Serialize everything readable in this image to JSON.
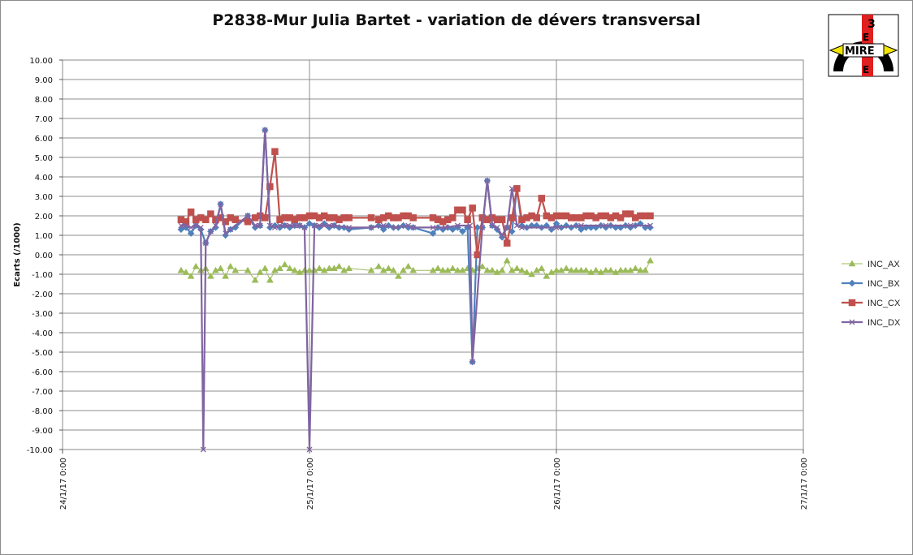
{
  "chart_data": {
    "type": "line",
    "title": "P2838-Mur Julia Bartet - variation de dévers transversal",
    "ylabel": "Ecarts (/1000)",
    "xlabel": "",
    "ylim": [
      -10,
      10
    ],
    "yticks": [
      "10.00",
      "9.00",
      "8.00",
      "7.00",
      "6.00",
      "5.00",
      "4.00",
      "3.00",
      "2.00",
      "1.00",
      "0.00",
      "-1.00",
      "-2.00",
      "-3.00",
      "-4.00",
      "-5.00",
      "-6.00",
      "-7.00",
      "-8.00",
      "-9.00",
      "-10.00"
    ],
    "xlim_days": [
      0,
      3
    ],
    "xticks": [
      "24/1/17 0:00",
      "25/1/17 0:00",
      "26/1/17 0:00",
      "27/1/17 0:00"
    ],
    "grid": "major",
    "legend_position": "right",
    "series": [
      {
        "name": "INC_AX",
        "color": "#9bbb59",
        "marker": "triangle",
        "x": [
          0.48,
          0.5,
          0.52,
          0.54,
          0.56,
          0.58,
          0.6,
          0.62,
          0.64,
          0.66,
          0.68,
          0.7,
          0.75,
          0.78,
          0.8,
          0.82,
          0.84,
          0.86,
          0.88,
          0.9,
          0.92,
          0.94,
          0.96,
          0.98,
          1.0,
          1.02,
          1.04,
          1.06,
          1.08,
          1.1,
          1.12,
          1.14,
          1.16,
          1.25,
          1.28,
          1.3,
          1.32,
          1.34,
          1.36,
          1.38,
          1.4,
          1.42,
          1.5,
          1.52,
          1.54,
          1.56,
          1.58,
          1.6,
          1.62,
          1.64,
          1.66,
          1.68,
          1.7,
          1.72,
          1.74,
          1.76,
          1.78,
          1.8,
          1.82,
          1.84,
          1.86,
          1.88,
          1.9,
          1.92,
          1.94,
          1.96,
          1.98,
          2.0,
          2.02,
          2.04,
          2.06,
          2.08,
          2.1,
          2.12,
          2.14,
          2.16,
          2.18,
          2.2,
          2.22,
          2.24,
          2.26,
          2.28,
          2.3,
          2.32,
          2.34,
          2.36,
          2.38
        ],
        "y": [
          -0.8,
          -0.9,
          -1.1,
          -0.6,
          -0.8,
          -0.7,
          -1.1,
          -0.8,
          -0.7,
          -1.1,
          -0.6,
          -0.8,
          -0.8,
          -1.3,
          -0.9,
          -0.7,
          -1.3,
          -0.8,
          -0.7,
          -0.5,
          -0.7,
          -0.8,
          -0.9,
          -0.8,
          -0.8,
          -0.8,
          -0.7,
          -0.8,
          -0.7,
          -0.7,
          -0.6,
          -0.8,
          -0.7,
          -0.8,
          -0.6,
          -0.8,
          -0.7,
          -0.8,
          -1.1,
          -0.8,
          -0.6,
          -0.8,
          -0.8,
          -0.7,
          -0.8,
          -0.8,
          -0.7,
          -0.8,
          -0.8,
          -0.7,
          -0.8,
          -0.7,
          -0.6,
          -0.8,
          -0.8,
          -0.9,
          -0.8,
          -0.3,
          -0.8,
          -0.7,
          -0.8,
          -0.9,
          -1.0,
          -0.8,
          -0.7,
          -1.1,
          -0.9,
          -0.8,
          -0.8,
          -0.7,
          -0.8,
          -0.8,
          -0.8,
          -0.8,
          -0.9,
          -0.8,
          -0.9,
          -0.8,
          -0.8,
          -0.9,
          -0.8,
          -0.8,
          -0.8,
          -0.7,
          -0.8,
          -0.8,
          -0.3
        ]
      },
      {
        "name": "INC_BX",
        "color": "#4f81bd",
        "marker": "diamond",
        "x": [
          0.48,
          0.5,
          0.52,
          0.54,
          0.56,
          0.58,
          0.6,
          0.62,
          0.64,
          0.66,
          0.68,
          0.7,
          0.75,
          0.78,
          0.8,
          0.82,
          0.84,
          0.86,
          0.88,
          0.9,
          0.92,
          0.94,
          0.96,
          0.98,
          1.0,
          1.02,
          1.04,
          1.06,
          1.08,
          1.1,
          1.12,
          1.14,
          1.16,
          1.25,
          1.28,
          1.3,
          1.32,
          1.34,
          1.36,
          1.38,
          1.4,
          1.42,
          1.5,
          1.52,
          1.54,
          1.56,
          1.58,
          1.6,
          1.62,
          1.64,
          1.66,
          1.68,
          1.7,
          1.72,
          1.74,
          1.76,
          1.78,
          1.8,
          1.82,
          1.84,
          1.86,
          1.88,
          1.9,
          1.92,
          1.94,
          1.96,
          1.98,
          2.0,
          2.02,
          2.04,
          2.06,
          2.08,
          2.1,
          2.12,
          2.14,
          2.16,
          2.18,
          2.2,
          2.22,
          2.24,
          2.26,
          2.28,
          2.3,
          2.32,
          2.34,
          2.36,
          2.38
        ],
        "y": [
          1.3,
          1.4,
          1.1,
          1.5,
          1.3,
          0.6,
          1.2,
          1.4,
          2.6,
          1.0,
          1.3,
          1.4,
          2.0,
          1.4,
          1.5,
          6.4,
          1.4,
          1.5,
          1.4,
          1.5,
          1.4,
          1.5,
          1.5,
          1.4,
          1.6,
          1.5,
          1.4,
          1.6,
          1.4,
          1.5,
          1.4,
          1.4,
          1.3,
          1.4,
          1.5,
          1.3,
          1.5,
          1.4,
          1.4,
          1.5,
          1.4,
          1.4,
          1.1,
          1.4,
          1.3,
          1.4,
          1.3,
          1.4,
          1.2,
          1.4,
          -5.5,
          1.4,
          1.4,
          3.8,
          1.5,
          1.3,
          0.9,
          1.4,
          1.2,
          3.4,
          1.5,
          1.4,
          1.5,
          1.5,
          1.4,
          1.5,
          1.3,
          1.6,
          1.4,
          1.5,
          1.4,
          1.5,
          1.3,
          1.4,
          1.4,
          1.4,
          1.5,
          1.4,
          1.5,
          1.4,
          1.4,
          1.5,
          1.4,
          1.5,
          1.6,
          1.4,
          1.4
        ]
      },
      {
        "name": "INC_CX",
        "color": "#c0504d",
        "marker": "square",
        "x": [
          0.48,
          0.5,
          0.52,
          0.54,
          0.56,
          0.58,
          0.6,
          0.62,
          0.64,
          0.66,
          0.68,
          0.7,
          0.75,
          0.78,
          0.8,
          0.82,
          0.84,
          0.86,
          0.88,
          0.9,
          0.92,
          0.94,
          0.96,
          0.98,
          1.0,
          1.02,
          1.04,
          1.06,
          1.08,
          1.1,
          1.12,
          1.14,
          1.16,
          1.25,
          1.28,
          1.3,
          1.32,
          1.34,
          1.36,
          1.38,
          1.4,
          1.42,
          1.5,
          1.52,
          1.54,
          1.56,
          1.58,
          1.6,
          1.62,
          1.64,
          1.66,
          1.68,
          1.7,
          1.72,
          1.74,
          1.76,
          1.78,
          1.8,
          1.82,
          1.84,
          1.86,
          1.88,
          1.9,
          1.92,
          1.94,
          1.96,
          1.98,
          2.0,
          2.02,
          2.04,
          2.06,
          2.08,
          2.1,
          2.12,
          2.14,
          2.16,
          2.18,
          2.2,
          2.22,
          2.24,
          2.26,
          2.28,
          2.3,
          2.32,
          2.34,
          2.36,
          2.38
        ],
        "y": [
          1.8,
          1.7,
          2.2,
          1.8,
          1.9,
          1.8,
          2.1,
          1.8,
          1.9,
          1.7,
          1.9,
          1.8,
          1.7,
          1.9,
          2.0,
          1.9,
          3.5,
          5.3,
          1.8,
          1.9,
          1.9,
          1.8,
          1.9,
          1.9,
          2.0,
          2.0,
          1.9,
          2.0,
          1.9,
          1.9,
          1.8,
          1.9,
          1.9,
          1.9,
          1.8,
          1.9,
          2.0,
          1.9,
          1.9,
          2.0,
          2.0,
          1.9,
          1.9,
          1.8,
          1.7,
          1.8,
          1.9,
          2.3,
          2.3,
          1.8,
          2.4,
          0.0,
          1.9,
          1.8,
          1.9,
          1.8,
          1.8,
          0.6,
          1.9,
          3.4,
          1.8,
          1.9,
          2.0,
          1.9,
          2.9,
          2.0,
          1.9,
          2.0,
          2.0,
          2.0,
          1.9,
          1.9,
          1.9,
          2.0,
          2.0,
          1.9,
          2.0,
          2.0,
          1.9,
          2.0,
          1.9,
          2.1,
          2.1,
          1.9,
          2.0,
          2.0,
          2.0
        ]
      },
      {
        "name": "INC_DX",
        "color": "#8064a2",
        "marker": "x",
        "x": [
          0.48,
          0.5,
          0.52,
          0.54,
          0.56,
          0.57,
          0.58,
          0.6,
          0.62,
          0.64,
          0.66,
          0.68,
          0.75,
          0.78,
          0.8,
          0.82,
          0.84,
          0.86,
          0.88,
          0.9,
          0.92,
          0.94,
          0.96,
          0.98,
          1.0,
          1.02,
          1.04,
          1.06,
          1.08,
          1.1,
          1.16,
          1.25,
          1.3,
          1.35,
          1.4,
          1.42,
          1.5,
          1.55,
          1.6,
          1.65,
          1.66,
          1.7,
          1.72,
          1.74,
          1.76,
          1.78,
          1.8,
          1.82,
          1.84,
          1.86,
          2.0,
          2.1,
          2.2,
          2.3,
          2.38
        ],
        "y": [
          1.5,
          1.5,
          1.4,
          1.5,
          1.4,
          -10.0,
          0.6,
          1.2,
          1.5,
          2.6,
          1.1,
          1.3,
          2.0,
          1.5,
          1.5,
          6.4,
          1.5,
          1.4,
          1.5,
          1.5,
          1.5,
          1.5,
          1.5,
          1.4,
          -10.0,
          1.5,
          1.5,
          1.5,
          1.5,
          1.5,
          1.4,
          1.4,
          1.5,
          1.4,
          1.5,
          1.4,
          1.4,
          1.4,
          1.5,
          1.5,
          -5.5,
          1.4,
          3.8,
          1.5,
          1.4,
          1.0,
          1.4,
          3.4,
          1.5,
          1.4,
          1.4,
          1.5,
          1.5,
          1.5,
          1.5
        ]
      }
    ]
  }
}
